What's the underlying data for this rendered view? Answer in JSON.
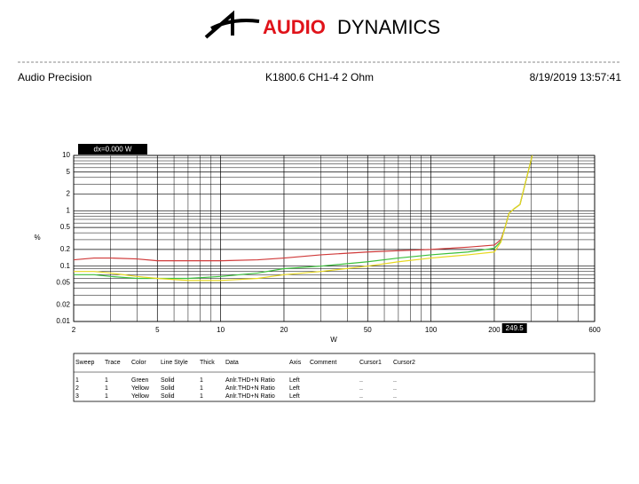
{
  "header": {
    "logo_word1": "AUDIO",
    "logo_word2": "DYNAMICS",
    "left": "Audio Precision",
    "center": "K1800.6 CH1-4 2 Ohm",
    "right": "8/19/2019 13:57:41"
  },
  "chart_data": {
    "type": "line",
    "y_label": "%",
    "x_label": "W",
    "annotation": "dx=0.000  W",
    "cursor_x": 249.5,
    "log_x": true,
    "log_y": true,
    "grid": true,
    "xlim": [
      2,
      600
    ],
    "ylim": [
      0.01,
      10
    ],
    "xticks": [
      2,
      5,
      10,
      20,
      50,
      100,
      200,
      600
    ],
    "yticks": [
      0.01,
      0.02,
      0.05,
      0.1,
      0.2,
      0.5,
      1,
      2,
      5,
      10
    ],
    "x_minor_gridlines": [
      3,
      4,
      6,
      7,
      8,
      9,
      30,
      40,
      60,
      70,
      80,
      90,
      300,
      400,
      500
    ],
    "y_minor_gridlines": [
      0.03,
      0.04,
      0.06,
      0.07,
      0.08,
      0.09,
      0.3,
      0.4,
      0.6,
      0.7,
      0.8,
      0.9,
      3,
      4,
      6,
      7,
      8,
      9
    ],
    "x": [
      2,
      2.5,
      3,
      4,
      5,
      7,
      10,
      15,
      20,
      30,
      50,
      70,
      100,
      150,
      200,
      215,
      225,
      235,
      249.5,
      265,
      280,
      303
    ],
    "series": [
      {
        "color": "#d03a3a",
        "values": [
          0.13,
          0.14,
          0.14,
          0.135,
          0.125,
          0.125,
          0.125,
          0.13,
          0.14,
          0.16,
          0.18,
          0.19,
          0.2,
          0.22,
          0.24,
          0.3,
          0.5,
          0.9,
          1.1,
          1.3,
          3,
          10
        ]
      },
      {
        "color": "#3cc03c",
        "values": [
          0.07,
          0.07,
          0.065,
          0.06,
          0.06,
          0.06,
          0.065,
          0.075,
          0.09,
          0.1,
          0.12,
          0.14,
          0.16,
          0.18,
          0.21,
          0.28,
          0.5,
          0.9,
          1.1,
          1.3,
          3,
          10
        ]
      },
      {
        "color": "#e8d820",
        "values": [
          0.08,
          0.08,
          0.075,
          0.065,
          0.06,
          0.055,
          0.055,
          0.06,
          0.07,
          0.08,
          0.1,
          0.12,
          0.14,
          0.16,
          0.18,
          0.27,
          0.5,
          0.9,
          1.1,
          1.3,
          3,
          10
        ]
      }
    ]
  },
  "table": {
    "columns": [
      "Sweep",
      "Trace",
      "Color",
      "Line Style",
      "Thick",
      "Data",
      "Axis",
      "Comment",
      "Cursor1",
      "Cursor2"
    ],
    "rows": [
      {
        "sweep": 1,
        "trace": 1,
        "color": "Green",
        "line_style": "Solid",
        "thick": 1,
        "data": "Anlr.THD+N Ratio",
        "axis": "Left",
        "cursor1": "..",
        "cursor2": ".."
      },
      {
        "sweep": 2,
        "trace": 1,
        "color": "Yellow",
        "line_style": "Solid",
        "thick": 1,
        "data": "Anlr.THD+N Ratio",
        "axis": "Left",
        "cursor1": "..",
        "cursor2": ".."
      },
      {
        "sweep": 3,
        "trace": 1,
        "color": "Yellow",
        "line_style": "Solid",
        "thick": 1,
        "data": "Anlr.THD+N Ratio",
        "axis": "Left",
        "cursor1": "..",
        "cursor2": ".."
      }
    ]
  }
}
